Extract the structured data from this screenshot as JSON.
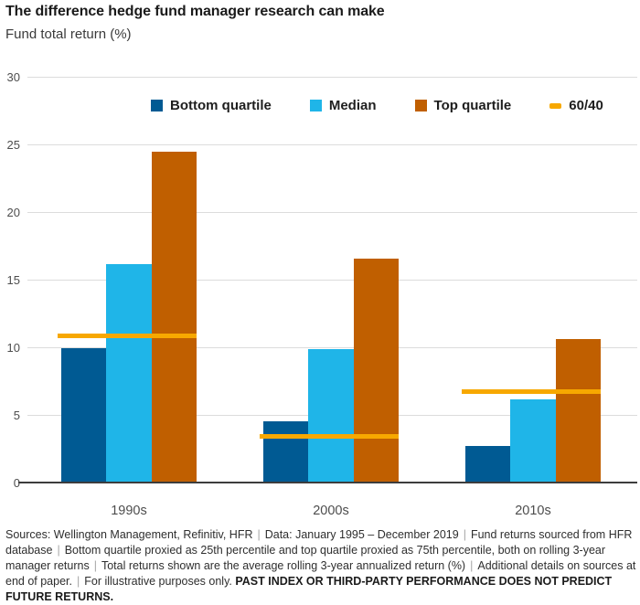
{
  "header": {
    "title": "The difference hedge fund manager research can make",
    "subtitle": "Fund total return (%)"
  },
  "chart_data": {
    "type": "bar",
    "title": "The difference hedge fund manager research can make",
    "ylabel": "Fund total return (%)",
    "categories": [
      "1990s",
      "2000s",
      "2010s"
    ],
    "series": [
      {
        "name": "Bottom quartile",
        "style": "bar",
        "color": "#005a93",
        "values": [
          10.0,
          4.6,
          2.8
        ]
      },
      {
        "name": "Median",
        "style": "bar",
        "color": "#1fb5e8",
        "values": [
          16.2,
          9.9,
          6.2
        ]
      },
      {
        "name": "Top quartile",
        "style": "bar",
        "color": "#c05f00",
        "values": [
          24.5,
          16.6,
          10.7
        ]
      },
      {
        "name": "60/40",
        "style": "tick-line",
        "color": "#f7a800",
        "values": [
          10.9,
          3.5,
          6.8
        ]
      }
    ],
    "ylim": [
      0,
      30
    ],
    "yticks": [
      0,
      5,
      10,
      15,
      20,
      25,
      30
    ],
    "grid": true,
    "grid_color": "#dcdcdc",
    "axis_color": "#3d3d3d",
    "legend_position": "top-inside"
  },
  "footer": {
    "separator": "|",
    "segments": [
      "Sources: Wellington Management, Refinitiv, HFR",
      "Data: January 1995 – December 2019",
      "Fund returns sourced from HFR database",
      "Bottom quartile proxied as 25th percentile and top quartile proxied as 75th percentile, both on rolling 3-year manager returns",
      "Total returns shown are the average rolling 3-year annualized return (%)",
      "Additional details on sources at end of paper.",
      "For illustrative purposes only."
    ],
    "disclaimer_bold": "PAST INDEX OR THIRD-PARTY PERFORMANCE DOES NOT PREDICT FUTURE RETURNS."
  }
}
